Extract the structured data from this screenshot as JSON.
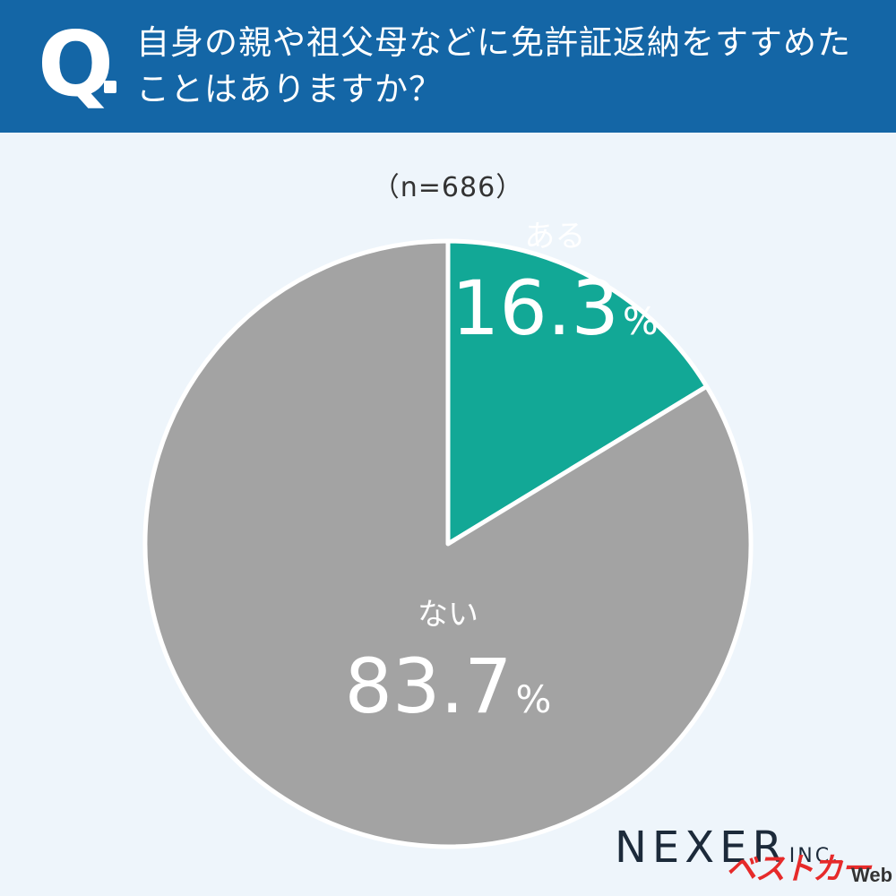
{
  "header": {
    "q_mark": "Q",
    "question": "自身の親や祖父母などに免許証返納をすすめたことはありますか？"
  },
  "chart_data": {
    "type": "pie",
    "sample_size_label": "（n=686）",
    "slices": [
      {
        "label": "ある",
        "value": 16.3,
        "value_label": "16.3",
        "unit": "%",
        "color": "#12a896"
      },
      {
        "label": "ない",
        "value": 83.7,
        "value_label": "83.7",
        "unit": "%",
        "color": "#a3a3a3"
      }
    ],
    "start": "12 o'clock",
    "direction": "clockwise"
  },
  "footer": {
    "logo": "NEXER",
    "logo_suffix": "INC.",
    "watermark": "ベストカー",
    "watermark_suffix": "Web"
  },
  "colors": {
    "header_bg": "#1466a6",
    "page_bg": "#eef5fb"
  }
}
